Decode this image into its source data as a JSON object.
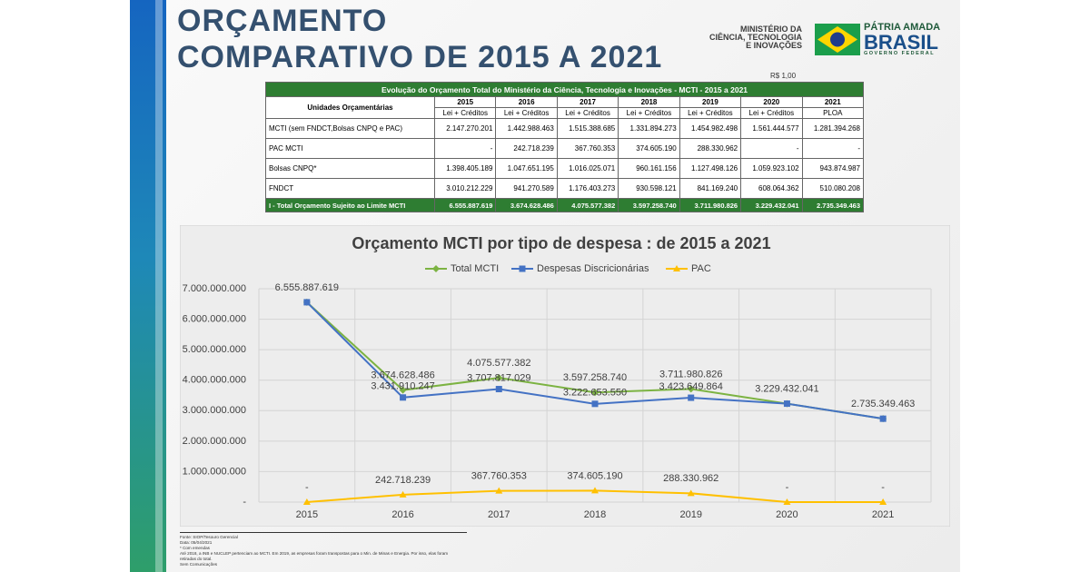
{
  "header": {
    "title_lines": [
      "ORÇAMENTO",
      "COMPARATIVO DE 2015 A 2021"
    ],
    "ministry_lines": [
      "MINISTÉRIO DA",
      "CIÊNCIA, TECNOLOGIA",
      "E INOVAÇÕES"
    ],
    "brand_lines": [
      "PÁTRIA AMADA",
      "BRASIL",
      "GOVERNO FEDERAL"
    ]
  },
  "table": {
    "currency_note": "R$ 1,00",
    "caption": "Evolução do Orçamento Total do Ministério da Ciência, Tecnologia e Inovações - MCTI - 2015 a 2021",
    "row_header": "Unidades Orçamentárias",
    "years": [
      "2015",
      "2016",
      "2017",
      "2018",
      "2019",
      "2020",
      "2021"
    ],
    "subheaders": [
      "Lei + Créditos",
      "Lei + Créditos",
      "Lei + Créditos",
      "Lei + Créditos",
      "Lei + Créditos",
      "Lei + Créditos",
      "PLOA"
    ],
    "rows": [
      [
        "MCTI  (sem FNDCT,Bolsas CNPQ e PAC)",
        "2.147.270.201",
        "1.442.988.463",
        "1.515.388.685",
        "1.331.894.273",
        "1.454.982.498",
        "1.561.444.577",
        "1.281.394.268"
      ],
      [
        "PAC MCTI",
        "-",
        "242.718.239",
        "367.760.353",
        "374.605.190",
        "288.330.962",
        "-",
        "-"
      ],
      [
        "Bolsas CNPQ*",
        "1.398.405.189",
        "1.047.651.195",
        "1.016.025.071",
        "960.161.156",
        "1.127.498.126",
        "1.059.923.102",
        "943.874.987"
      ],
      [
        "FNDCT",
        "3.010.212.229",
        "941.270.589",
        "1.176.403.273",
        "930.598.121",
        "841.169.240",
        "608.064.362",
        "510.080.208"
      ]
    ],
    "total_row": [
      "I - Total Orçamento Sujeito ao Limite MCTI",
      "6.555.887.619",
      "3.674.628.486",
      "4.075.577.382",
      "3.597.258.740",
      "3.711.980.826",
      "3.229.432.041",
      "2.735.349.463"
    ]
  },
  "chart_data": {
    "type": "line",
    "title": "Orçamento MCTI por tipo de despesa : de 2015 a 2021",
    "categories": [
      "2015",
      "2016",
      "2017",
      "2018",
      "2019",
      "2020",
      "2021"
    ],
    "series": [
      {
        "name": "Total MCTI",
        "color": "#7cb342",
        "values": [
          6555887619,
          3674628486,
          4075577382,
          3597258740,
          3711980826,
          3229432041,
          2735349463
        ],
        "value_labels": [
          "6.555.887.619",
          "3.674.628.486",
          "4.075.577.382",
          "3.597.258.740",
          "3.711.980.826",
          "3.229.432.041",
          "2.735.349.463"
        ]
      },
      {
        "name": "Despesas Discricionárias",
        "color": "#4472c4",
        "values": [
          6555887619,
          3431910247,
          3707817029,
          3222653550,
          3423649864,
          3229432041,
          2735349463
        ],
        "value_labels": [
          null,
          "3.431.910.247",
          "3.707.817.029",
          "3.222.653.550",
          "3.423.649.864",
          null,
          null
        ]
      },
      {
        "name": "PAC",
        "color": "#ffc000",
        "values": [
          0,
          242718239,
          367760353,
          374605190,
          288330962,
          0,
          0
        ],
        "value_labels": [
          "-",
          "242.718.239",
          "367.760.353",
          "374.605.190",
          "288.330.962",
          "-",
          "-"
        ]
      }
    ],
    "ylim": [
      0,
      7000000000
    ],
    "yticks": [
      {
        "value": 0,
        "label": "-"
      },
      {
        "value": 1000000000,
        "label": "1.000.000.000"
      },
      {
        "value": 2000000000,
        "label": "2.000.000.000"
      },
      {
        "value": 3000000000,
        "label": "3.000.000.000"
      },
      {
        "value": 4000000000,
        "label": "4.000.000.000"
      },
      {
        "value": 5000000000,
        "label": "5.000.000.000"
      },
      {
        "value": 6000000000,
        "label": "6.000.000.000"
      },
      {
        "value": 7000000000,
        "label": "7.000.000.000"
      }
    ],
    "grid": true,
    "legend": "top"
  },
  "footnotes": [
    "Fonte: SIOP/Tesouro Gerencial",
    "Data: 05/04/2021",
    "* Com emendas",
    "Até 2018, a INB e NUCLEP pertenciam ao MCTI. Em 2019, as empresas foram transpostas para o Min. de Minas e Energia. Por isso, elas foram",
    "retiradas do total.",
    "Sem Comunicações"
  ]
}
